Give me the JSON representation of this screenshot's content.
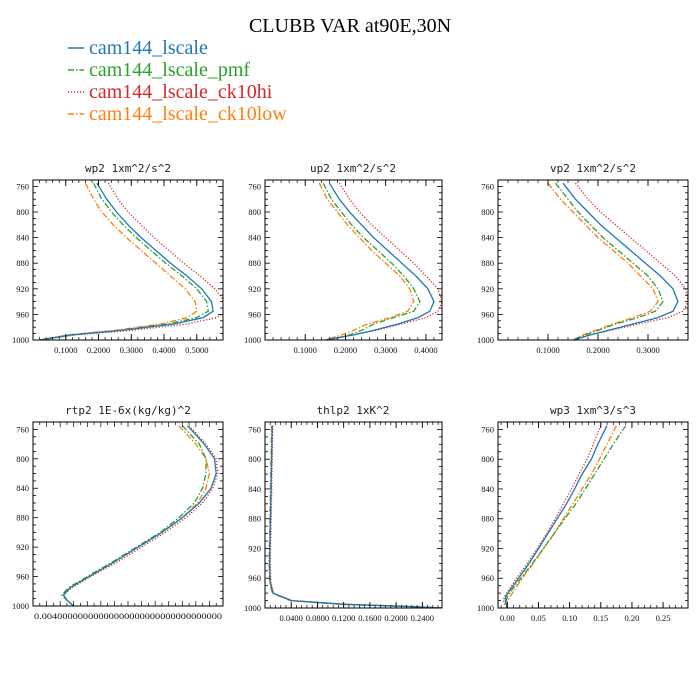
{
  "title": "CLUBB VAR at90E,30N",
  "legend": [
    {
      "label": "cam144_lscale",
      "color": "#1f77b4",
      "dash": "solid"
    },
    {
      "label": "cam144_lscale_pmf",
      "color": "#2ca02c",
      "dash": "dashdot"
    },
    {
      "label": "cam144_lscale_ck10hi",
      "color": "#d62728",
      "dash": "dotted"
    },
    {
      "label": "cam144_lscale_ck10low",
      "color": "#ff7f0e",
      "dash": "dashdot"
    }
  ],
  "chart_data": [
    {
      "type": "line",
      "title": "wp2  1xm^2/s^2",
      "xlim": [
        0.0,
        0.58
      ],
      "ylim": [
        1000,
        750
      ],
      "xticks": [
        "0.1000",
        "0.2000",
        "0.3000",
        "0.4000",
        "0.5000"
      ],
      "xtick_values": [
        0.1,
        0.2,
        0.3,
        0.4,
        0.5
      ],
      "yticks": [
        760,
        800,
        840,
        880,
        920,
        960,
        1000
      ],
      "y": [
        755,
        780,
        800,
        820,
        840,
        860,
        880,
        900,
        920,
        940,
        955,
        965,
        975,
        985,
        992,
        1000
      ],
      "series": [
        {
          "name": "cam144_lscale",
          "values": [
            0.195,
            0.225,
            0.255,
            0.29,
            0.33,
            0.375,
            0.42,
            0.47,
            0.515,
            0.545,
            0.55,
            0.52,
            0.43,
            0.27,
            0.12,
            0.02
          ]
        },
        {
          "name": "cam144_lscale_pmf",
          "values": [
            0.185,
            0.21,
            0.24,
            0.275,
            0.315,
            0.36,
            0.405,
            0.455,
            0.5,
            0.53,
            0.535,
            0.5,
            0.41,
            0.26,
            0.11,
            0.02
          ]
        },
        {
          "name": "cam144_lscale_ck10hi",
          "values": [
            0.23,
            0.26,
            0.29,
            0.33,
            0.37,
            0.415,
            0.46,
            0.51,
            0.555,
            0.585,
            0.59,
            0.56,
            0.47,
            0.3,
            0.13,
            0.02
          ]
        },
        {
          "name": "cam144_lscale_ck10low",
          "values": [
            0.16,
            0.185,
            0.21,
            0.245,
            0.285,
            0.33,
            0.375,
            0.42,
            0.465,
            0.495,
            0.5,
            0.47,
            0.39,
            0.25,
            0.11,
            0.02
          ]
        }
      ]
    },
    {
      "type": "line",
      "title": "up2  1xm^2/s^2",
      "xlim": [
        0.0,
        0.44
      ],
      "ylim": [
        1000,
        750
      ],
      "xticks": [
        "0.1000",
        "0.2000",
        "0.3000",
        "0.4000"
      ],
      "xtick_values": [
        0.1,
        0.2,
        0.3,
        0.4
      ],
      "yticks": [
        760,
        800,
        840,
        880,
        920,
        960,
        1000
      ],
      "y": [
        755,
        780,
        800,
        820,
        840,
        860,
        880,
        900,
        920,
        940,
        955,
        965,
        975,
        985,
        992,
        1000
      ],
      "series": [
        {
          "name": "cam144_lscale",
          "values": [
            0.16,
            0.185,
            0.21,
            0.24,
            0.27,
            0.305,
            0.34,
            0.375,
            0.405,
            0.42,
            0.41,
            0.38,
            0.33,
            0.27,
            0.22,
            0.15
          ]
        },
        {
          "name": "cam144_lscale_pmf",
          "values": [
            0.145,
            0.165,
            0.19,
            0.215,
            0.245,
            0.28,
            0.315,
            0.345,
            0.37,
            0.385,
            0.37,
            0.32,
            0.27,
            0.24,
            0.21,
            0.16
          ]
        },
        {
          "name": "cam144_lscale_ck10hi",
          "values": [
            0.185,
            0.21,
            0.235,
            0.265,
            0.3,
            0.335,
            0.37,
            0.4,
            0.43,
            0.44,
            0.43,
            0.4,
            0.34,
            0.275,
            0.22,
            0.15
          ]
        },
        {
          "name": "cam144_lscale_ck10low",
          "values": [
            0.135,
            0.155,
            0.18,
            0.205,
            0.235,
            0.265,
            0.3,
            0.335,
            0.36,
            0.37,
            0.355,
            0.31,
            0.255,
            0.22,
            0.19,
            0.15
          ]
        }
      ]
    },
    {
      "type": "line",
      "title": "vp2  1xm^2/s^2",
      "xlim": [
        0.0,
        0.38
      ],
      "ylim": [
        1000,
        750
      ],
      "xticks": [
        "0.1000",
        "0.2000",
        "0.3000"
      ],
      "xtick_values": [
        0.1,
        0.2,
        0.3
      ],
      "yticks": [
        760,
        800,
        840,
        880,
        920,
        960,
        1000
      ],
      "y": [
        755,
        780,
        800,
        820,
        840,
        860,
        880,
        900,
        920,
        940,
        955,
        965,
        975,
        985,
        992,
        1000
      ],
      "series": [
        {
          "name": "cam144_lscale",
          "values": [
            0.13,
            0.155,
            0.18,
            0.205,
            0.235,
            0.265,
            0.295,
            0.325,
            0.35,
            0.36,
            0.35,
            0.32,
            0.27,
            0.22,
            0.185,
            0.15
          ]
        },
        {
          "name": "cam144_lscale_pmf",
          "values": [
            0.115,
            0.14,
            0.16,
            0.185,
            0.21,
            0.24,
            0.27,
            0.3,
            0.32,
            0.33,
            0.315,
            0.28,
            0.235,
            0.2,
            0.175,
            0.15
          ]
        },
        {
          "name": "cam144_lscale_ck10hi",
          "values": [
            0.155,
            0.18,
            0.205,
            0.235,
            0.265,
            0.295,
            0.325,
            0.355,
            0.375,
            0.38,
            0.37,
            0.34,
            0.28,
            0.225,
            0.185,
            0.15
          ]
        },
        {
          "name": "cam144_lscale_ck10low",
          "values": [
            0.1,
            0.125,
            0.15,
            0.175,
            0.2,
            0.23,
            0.26,
            0.285,
            0.31,
            0.32,
            0.305,
            0.27,
            0.23,
            0.195,
            0.17,
            0.15
          ]
        }
      ]
    },
    {
      "type": "line",
      "title": "rtp2  1E-6x(kg/kg)^2",
      "xlim": [
        0.0,
        0.0056
      ],
      "ylim": [
        1000,
        750
      ],
      "xticks": [
        "0.0040",
        "0.0060",
        "0.0080",
        "0.0100",
        "0.0120",
        "0.0140",
        "0.0160",
        "0.0180",
        "0.0200",
        "0.0220",
        "0.0240",
        "0.0260",
        "0.0280",
        "0.0300",
        "0.0320",
        "0.0340",
        "0.0360",
        "0.0380",
        "0.0400",
        "0.0420",
        "0.0440"
      ],
      "xtick_values": [],
      "xtick_label_text": "0.00400000000000000000000000000000000",
      "yticks": [
        760,
        800,
        840,
        880,
        920,
        960,
        1000
      ],
      "y": [
        755,
        780,
        800,
        820,
        840,
        860,
        880,
        900,
        920,
        940,
        960,
        975,
        985,
        992,
        1000
      ],
      "series": [
        {
          "name": "cam144_lscale",
          "values": [
            0.00455,
            0.00505,
            0.00535,
            0.0054,
            0.00525,
            0.0049,
            0.0044,
            0.0038,
            0.0031,
            0.0024,
            0.00165,
            0.0011,
            0.0009,
            0.001,
            0.0012
          ]
        },
        {
          "name": "cam144_lscale_pmf",
          "values": [
            0.0044,
            0.0049,
            0.0051,
            0.0051,
            0.005,
            0.00475,
            0.0043,
            0.00375,
            0.00305,
            0.00235,
            0.0016,
            0.00105,
            0.00085,
            0.001,
            0.0012
          ]
        },
        {
          "name": "cam144_lscale_ck10hi",
          "values": [
            0.0046,
            0.0051,
            0.0054,
            0.00545,
            0.0053,
            0.005,
            0.0045,
            0.0039,
            0.0032,
            0.0025,
            0.0017,
            0.00115,
            0.0009,
            0.001,
            0.0012
          ]
        },
        {
          "name": "cam144_lscale_ck10low",
          "values": [
            0.0043,
            0.0048,
            0.0051,
            0.0052,
            0.0051,
            0.00485,
            0.0044,
            0.0038,
            0.0031,
            0.0024,
            0.00165,
            0.0011,
            0.0009,
            0.001,
            0.0012
          ]
        }
      ]
    },
    {
      "type": "line",
      "title": "thlp2  1xK^2",
      "xlim": [
        0.0,
        0.27
      ],
      "ylim": [
        1000,
        750
      ],
      "xticks": [
        "0.0400",
        "0.0800",
        "0.1200",
        "0.1600",
        "0.2000",
        "0.2400"
      ],
      "xtick_values": [
        0.04,
        0.08,
        0.12,
        0.16,
        0.2,
        0.24
      ],
      "yticks": [
        760,
        800,
        840,
        880,
        920,
        960,
        1000
      ],
      "y": [
        755,
        800,
        850,
        900,
        940,
        965,
        980,
        990,
        995,
        998,
        1000
      ],
      "series": [
        {
          "name": "cam144_lscale",
          "values": [
            0.011,
            0.01,
            0.009,
            0.008,
            0.007,
            0.008,
            0.012,
            0.04,
            0.12,
            0.22,
            0.27
          ]
        },
        {
          "name": "cam144_lscale_pmf",
          "values": [
            0.011,
            0.01,
            0.009,
            0.008,
            0.007,
            0.008,
            0.012,
            0.04,
            0.12,
            0.22,
            0.27
          ]
        },
        {
          "name": "cam144_lscale_ck10hi",
          "values": [
            0.012,
            0.011,
            0.01,
            0.009,
            0.008,
            0.009,
            0.013,
            0.042,
            0.125,
            0.225,
            0.27
          ]
        },
        {
          "name": "cam144_lscale_ck10low",
          "values": [
            0.01,
            0.009,
            0.008,
            0.007,
            0.006,
            0.007,
            0.011,
            0.038,
            0.115,
            0.215,
            0.27
          ]
        }
      ]
    },
    {
      "type": "line",
      "title": "wp3  1xm^3/s^3",
      "xlim": [
        -0.015,
        0.29
      ],
      "ylim": [
        1000,
        750
      ],
      "xticks": [
        "0.00",
        "0.05",
        "0.10",
        "0.15",
        "0.20",
        "0.25"
      ],
      "xtick_values": [
        0.0,
        0.05,
        0.1,
        0.15,
        0.2,
        0.25
      ],
      "yticks": [
        760,
        800,
        840,
        880,
        920,
        960,
        1000
      ],
      "y": [
        755,
        780,
        800,
        820,
        840,
        860,
        880,
        900,
        920,
        940,
        960,
        975,
        985,
        992,
        1000
      ],
      "series": [
        {
          "name": "cam144_lscale",
          "values": [
            0.16,
            0.145,
            0.135,
            0.12,
            0.108,
            0.095,
            0.08,
            0.065,
            0.05,
            0.035,
            0.018,
            0.005,
            -0.003,
            -0.003,
            0.0
          ]
        },
        {
          "name": "cam144_lscale_pmf",
          "values": [
            0.19,
            0.17,
            0.155,
            0.14,
            0.125,
            0.11,
            0.092,
            0.075,
            0.058,
            0.04,
            0.022,
            0.008,
            0.0,
            -0.002,
            0.0
          ]
        },
        {
          "name": "cam144_lscale_ck10hi",
          "values": [
            0.15,
            0.138,
            0.128,
            0.115,
            0.103,
            0.09,
            0.077,
            0.063,
            0.048,
            0.032,
            0.015,
            0.003,
            -0.005,
            -0.006,
            0.0
          ]
        },
        {
          "name": "cam144_lscale_ck10low",
          "values": [
            0.175,
            0.16,
            0.148,
            0.135,
            0.12,
            0.105,
            0.09,
            0.075,
            0.058,
            0.042,
            0.024,
            0.012,
            0.004,
            0.0,
            0.0
          ]
        }
      ]
    }
  ]
}
